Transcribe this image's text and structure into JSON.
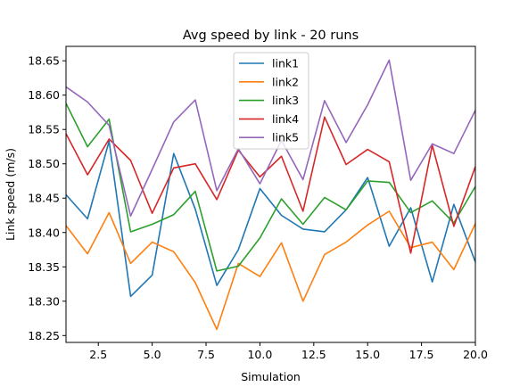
{
  "chart_data": {
    "type": "line",
    "title": "Avg speed by link - 20 runs",
    "xlabel": "Simulation",
    "ylabel": "Link speed (m/s)",
    "xlim": [
      1,
      20
    ],
    "ylim": [
      18.24,
      18.671
    ],
    "xticks": [
      2.5,
      5.0,
      7.5,
      10.0,
      12.5,
      15.0,
      17.5,
      20.0
    ],
    "xtick_labels": [
      "2.5",
      "5.0",
      "7.5",
      "10.0",
      "12.5",
      "15.0",
      "17.5",
      "20.0"
    ],
    "yticks": [
      18.25,
      18.3,
      18.35,
      18.4,
      18.45,
      18.5,
      18.55,
      18.6,
      18.65
    ],
    "ytick_labels": [
      "18.25",
      "18.30",
      "18.35",
      "18.40",
      "18.45",
      "18.50",
      "18.55",
      "18.60",
      "18.65"
    ],
    "grid": false,
    "legend_position": "top-center",
    "x": [
      1,
      2,
      3,
      4,
      5,
      6,
      7,
      8,
      9,
      10,
      11,
      12,
      13,
      14,
      15,
      16,
      17,
      18,
      19,
      20
    ],
    "series": [
      {
        "name": "link1",
        "color": "#1f77b4",
        "values": [
          18.455,
          18.42,
          18.533,
          18.307,
          18.338,
          18.515,
          18.434,
          18.323,
          18.375,
          18.464,
          18.425,
          18.405,
          18.401,
          18.433,
          18.48,
          18.38,
          18.436,
          18.328,
          18.441,
          18.357
        ]
      },
      {
        "name": "link2",
        "color": "#ff7f0e",
        "values": [
          18.41,
          18.369,
          18.429,
          18.355,
          18.386,
          18.372,
          18.327,
          18.259,
          18.355,
          18.336,
          18.385,
          18.3,
          18.368,
          18.386,
          18.411,
          18.431,
          18.378,
          18.386,
          18.346,
          18.413
        ]
      },
      {
        "name": "link3",
        "color": "#2ca02c",
        "values": [
          18.588,
          18.525,
          18.565,
          18.401,
          18.412,
          18.426,
          18.46,
          18.344,
          18.351,
          18.392,
          18.449,
          18.412,
          18.451,
          18.433,
          18.475,
          18.473,
          18.429,
          18.446,
          18.414,
          18.467
        ]
      },
      {
        "name": "link4",
        "color": "#d62728",
        "values": [
          18.544,
          18.484,
          18.536,
          18.505,
          18.428,
          18.494,
          18.5,
          18.448,
          18.52,
          18.481,
          18.511,
          18.431,
          18.568,
          18.499,
          18.521,
          18.503,
          18.37,
          18.527,
          18.409,
          18.496
        ]
      },
      {
        "name": "link5",
        "color": "#9467bd",
        "values": [
          18.612,
          18.59,
          18.556,
          18.424,
          18.492,
          18.561,
          18.593,
          18.461,
          18.522,
          18.471,
          18.534,
          18.477,
          18.592,
          18.531,
          18.586,
          18.651,
          18.476,
          18.529,
          18.515,
          18.578
        ]
      }
    ]
  }
}
